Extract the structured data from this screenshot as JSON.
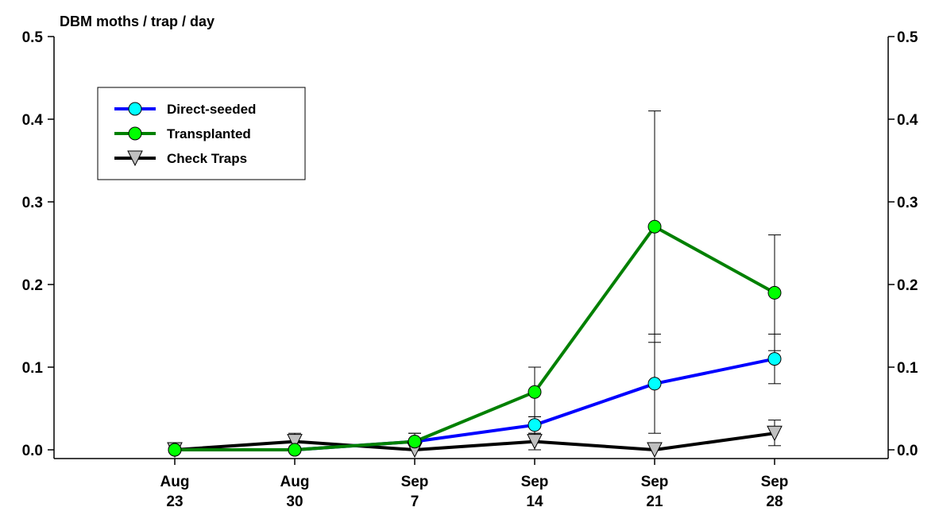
{
  "chart_data": {
    "type": "line",
    "ylabel": "DBM moths / trap / day",
    "ylim": [
      0,
      0.5
    ],
    "yticks": [
      "0.0",
      "0.1",
      "0.2",
      "0.3",
      "0.4",
      "0.5"
    ],
    "categories": [
      {
        "month": "Aug",
        "day": "23"
      },
      {
        "month": "Aug",
        "day": "30"
      },
      {
        "month": "Sep",
        "day": "7"
      },
      {
        "month": "Sep",
        "day": "14"
      },
      {
        "month": "Sep",
        "day": "21"
      },
      {
        "month": "Sep",
        "day": "28"
      }
    ],
    "series": [
      {
        "name": "Direct-seeded",
        "line_color": "#0000ff",
        "marker": "circle",
        "marker_color": "#00ffff",
        "values": [
          0,
          0,
          0.01,
          0.03,
          0.08,
          0.11
        ],
        "error_low": [
          0,
          0,
          0,
          0.02,
          0.02,
          0.08
        ],
        "error_high": [
          0,
          0,
          0,
          0.04,
          0.14,
          0.14
        ]
      },
      {
        "name": "Transplanted",
        "line_color": "#008000",
        "marker": "circle",
        "marker_color": "#00ff00",
        "values": [
          0,
          0,
          0.01,
          0.07,
          0.27,
          0.19
        ],
        "error_low": [
          0,
          0,
          0,
          0.04,
          0.13,
          0.12
        ],
        "error_high": [
          0,
          0,
          0.02,
          0.1,
          0.41,
          0.26
        ]
      },
      {
        "name": "Check Traps",
        "line_color": "#000000",
        "marker": "triangle-down",
        "marker_color": "#c0c0c0",
        "values": [
          0,
          0.01,
          0,
          0.01,
          0,
          0.02
        ],
        "error_low": [
          0,
          0,
          0,
          0,
          0,
          0.005
        ],
        "error_high": [
          0,
          0.02,
          0.02,
          0.02,
          0,
          0.036
        ]
      }
    ],
    "legend_position": "top-left",
    "grid": false,
    "right_axis_mirrored": true
  }
}
